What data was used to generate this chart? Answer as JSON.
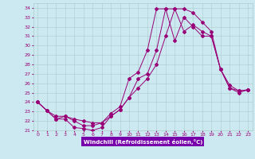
{
  "bg_color": "#cce8f0",
  "grid_color": "#aacccc",
  "line_color": "#990077",
  "xlim": [
    -0.5,
    23.5
  ],
  "ylim": [
    21,
    34.5
  ],
  "xticks": [
    0,
    1,
    2,
    3,
    4,
    5,
    6,
    7,
    8,
    9,
    10,
    11,
    12,
    13,
    14,
    15,
    16,
    17,
    18,
    19,
    20,
    21,
    22,
    23
  ],
  "yticks": [
    21,
    22,
    23,
    24,
    25,
    26,
    27,
    28,
    29,
    30,
    31,
    32,
    33,
    34
  ],
  "xlabel": "Windchill (Refroidissement éolien,°C)",
  "series1_x": [
    0,
    1,
    2,
    3,
    4,
    5,
    6,
    7,
    8,
    9,
    10,
    11,
    12,
    13,
    14,
    15,
    16,
    17,
    18,
    19,
    20,
    21,
    22,
    23
  ],
  "series1_y": [
    24.0,
    23.1,
    22.2,
    22.2,
    21.3,
    21.2,
    21.0,
    21.3,
    22.5,
    23.2,
    24.5,
    26.5,
    27.0,
    29.5,
    33.9,
    33.9,
    31.5,
    32.2,
    31.5,
    31.0,
    27.5,
    25.8,
    25.2,
    25.3
  ],
  "series2_x": [
    0,
    1,
    2,
    3,
    4,
    5,
    6,
    7,
    8,
    9,
    10,
    11,
    12,
    13,
    14,
    15,
    16,
    17,
    18,
    19,
    20,
    21,
    22,
    23
  ],
  "series2_y": [
    24.0,
    23.1,
    22.2,
    22.5,
    22.0,
    21.5,
    21.5,
    21.8,
    22.8,
    23.5,
    26.5,
    27.2,
    29.5,
    33.9,
    33.9,
    30.5,
    33.0,
    32.0,
    31.0,
    31.0,
    27.5,
    25.5,
    25.0,
    25.3
  ],
  "series3_x": [
    0,
    1,
    2,
    3,
    4,
    5,
    6,
    7,
    8,
    9,
    10,
    11,
    12,
    13,
    14,
    15,
    16,
    17,
    18,
    19,
    20,
    21,
    22,
    23
  ],
  "series3_y": [
    24.0,
    23.1,
    22.5,
    22.5,
    22.2,
    22.0,
    21.8,
    21.8,
    22.5,
    23.2,
    24.5,
    25.5,
    26.5,
    28.0,
    31.0,
    33.9,
    33.9,
    33.5,
    32.5,
    31.5,
    27.5,
    25.5,
    25.2,
    25.3
  ]
}
